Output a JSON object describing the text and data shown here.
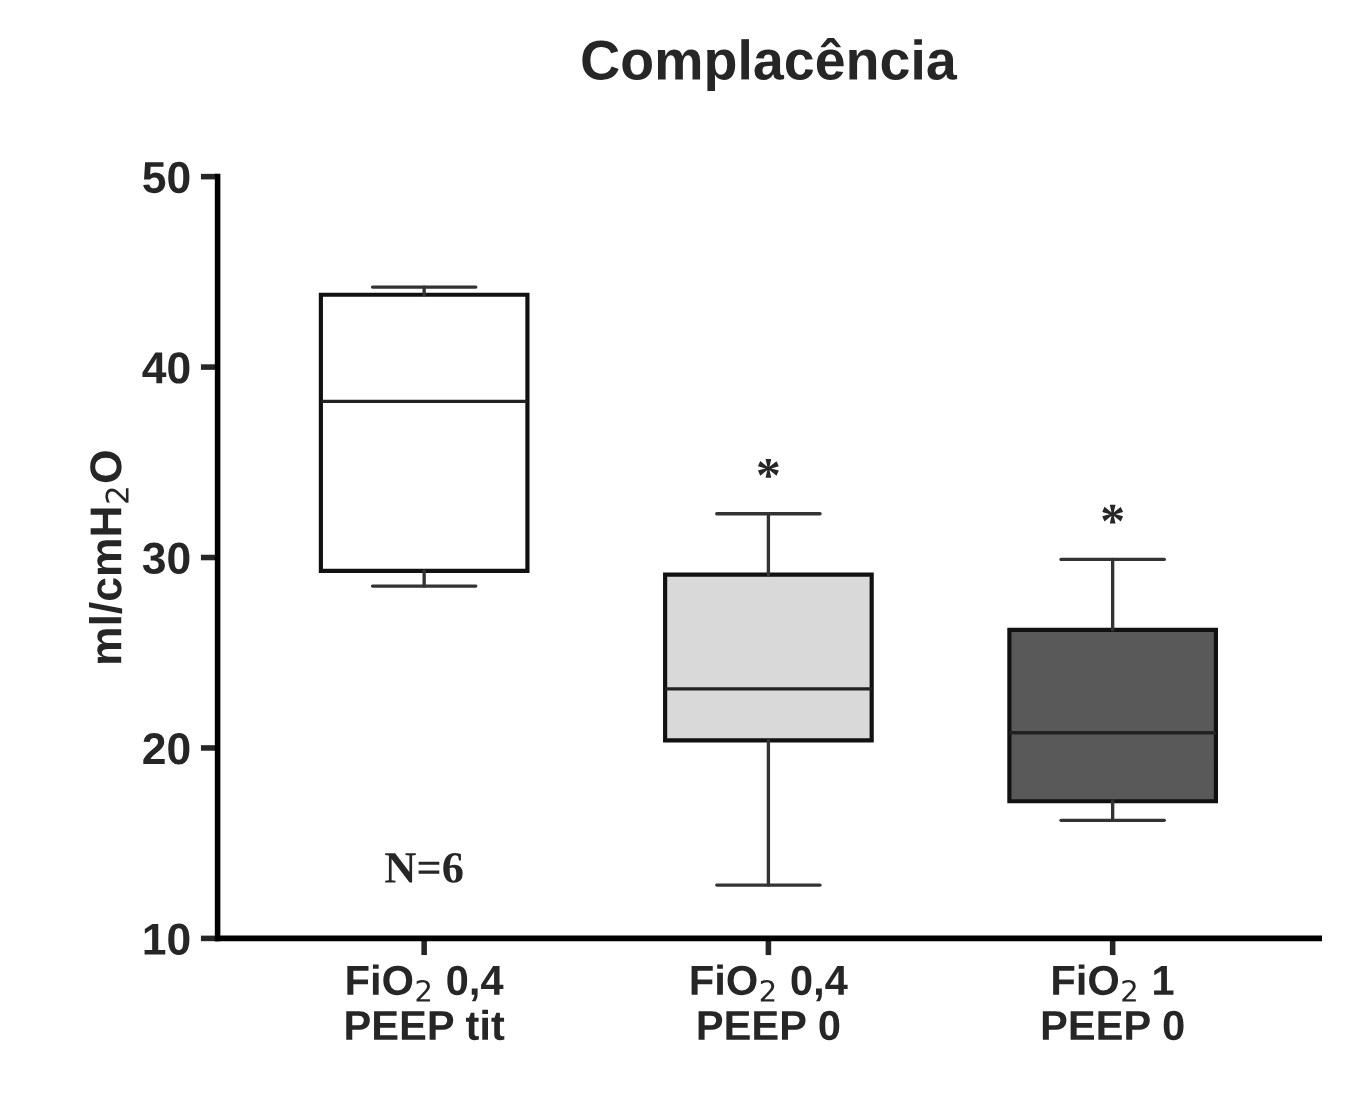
{
  "chart_data": {
    "type": "box",
    "title": "Complacência",
    "ylabel": "ml/cmH$_{2}$O",
    "categories": [
      "FiO$_{2}$ 0,4\nPEEP tit",
      "FiO$_{2}$ 0,4\nPEEP 0",
      "FiO$_{2}$ 1\nPEEP 0"
    ],
    "colors": [
      "#ffffff",
      "#d9d9d9",
      "#595959"
    ],
    "boxes": [
      {
        "low": 28.5,
        "q1": 29.3,
        "median": 38.2,
        "q3": 43.8,
        "high": 44.2
      },
      {
        "low": 12.8,
        "q1": 20.4,
        "median": 23.1,
        "q3": 29.1,
        "high": 32.3
      },
      {
        "low": 16.2,
        "q1": 17.2,
        "median": 20.8,
        "q3": 26.2,
        "high": 29.9
      }
    ],
    "ylim": [
      10,
      50
    ],
    "yticks": [
      10,
      20,
      30,
      40,
      50
    ],
    "grid": false,
    "legend": false,
    "annotations": [
      "*",
      "*",
      "N=6"
    ]
  }
}
